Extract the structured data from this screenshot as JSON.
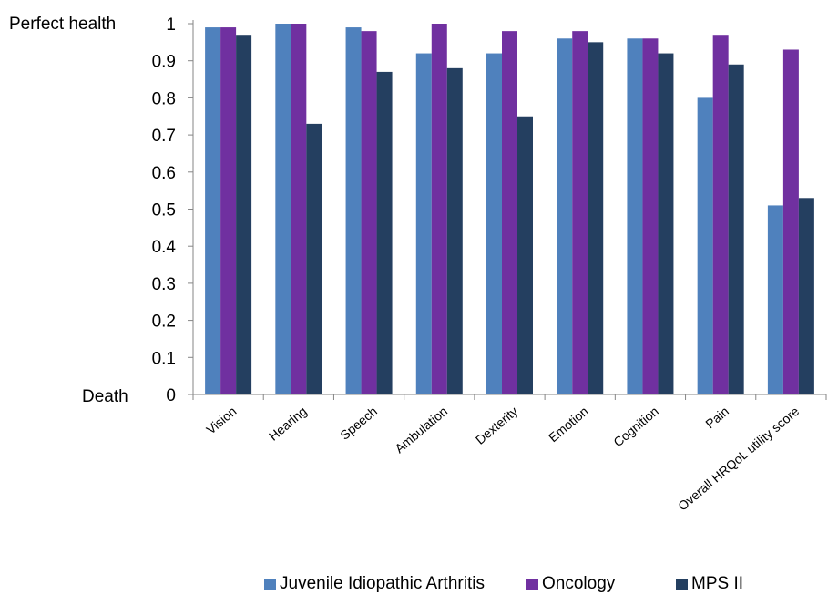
{
  "chart_data": {
    "type": "bar",
    "categories": [
      "Vision",
      "Hearing",
      "Speech",
      "Ambulation",
      "Dexterity",
      "Emotion",
      "Cognition",
      "Pain",
      "Overall HRQoL utility score"
    ],
    "series": [
      {
        "name": "Juvenile Idiopathic Arthritis",
        "color": "#4f81bd",
        "values": [
          0.99,
          1.0,
          0.99,
          0.92,
          0.92,
          0.96,
          0.96,
          0.8,
          0.51
        ]
      },
      {
        "name": "Oncology",
        "color": "#7030a0",
        "values": [
          0.99,
          1.0,
          0.98,
          1.0,
          0.98,
          0.98,
          0.96,
          0.97,
          0.93
        ]
      },
      {
        "name": "MPS II",
        "color": "#243f60",
        "values": [
          0.97,
          0.73,
          0.87,
          0.88,
          0.75,
          0.95,
          0.92,
          0.89,
          0.53
        ]
      }
    ],
    "ylim": [
      0,
      1
    ],
    "yticks": [
      "0",
      "0.1",
      "0.2",
      "0.3",
      "0.4",
      "0.5",
      "0.6",
      "0.7",
      "0.8",
      "0.9",
      "1"
    ],
    "y_side_labels": {
      "top": "Perfect health",
      "bottom": "Death"
    },
    "legend_position": "bottom",
    "grid": false
  }
}
